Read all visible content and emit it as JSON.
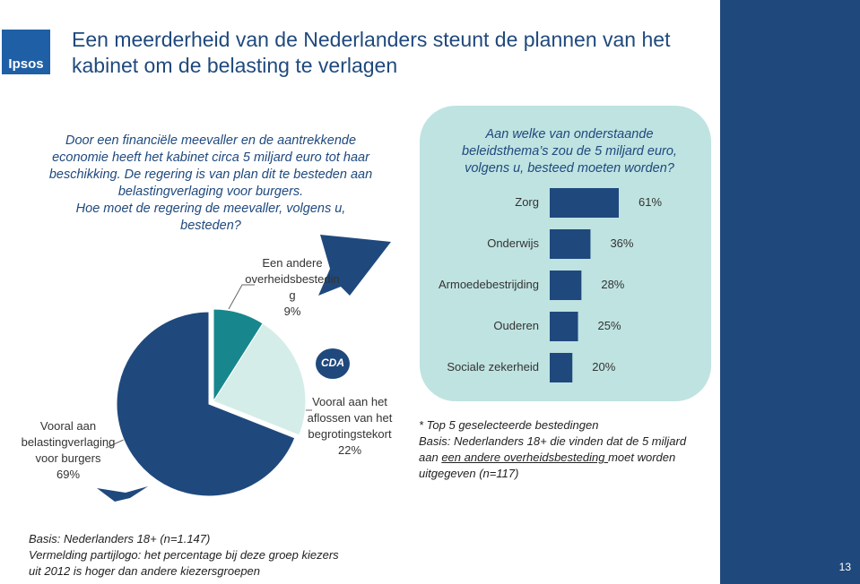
{
  "header": {
    "logo": "Ipsos",
    "title": "Een meerderheid van de Nederlanders steunt de plannen van het kabinet om de belasting te verlagen"
  },
  "intro": [
    "Door een financiële meevaller en de aantrekkende",
    "economie heeft het kabinet circa 5 miljard euro tot haar",
    "beschikking. De regering is van plan dit te besteden aan",
    "belastingverlaging voor burgers.",
    "Hoe moet de regering de meevaller, volgens u,",
    "besteden?"
  ],
  "chart_data": [
    {
      "type": "pie",
      "categories": [
        "Een andere overheidsbesteding",
        "Vooral aan het aflossen van het begrotingstekort",
        "Vooral aan belastingverlaging voor burgers"
      ],
      "values": [
        9,
        22,
        69
      ],
      "value_labels": [
        "9%",
        "22%",
        "69%"
      ],
      "colors": [
        "#17878d",
        "#d5ede9",
        "#1f497d"
      ]
    },
    {
      "type": "bar",
      "title": "Aan welke van onderstaande beleidsthema’s zou de 5 miljard euro, volgens u, besteed moeten worden?",
      "categories": [
        "Zorg",
        "Onderwijs",
        "Armoedebestrijding",
        "Ouderen",
        "Sociale zekerheid"
      ],
      "values": [
        61,
        36,
        28,
        25,
        20
      ],
      "value_labels": [
        "61%",
        "36%",
        "28%",
        "25%",
        "20%"
      ],
      "color": "#1f497d",
      "orientation": "horizontal"
    }
  ],
  "party_logo": "CDA",
  "bar_notes": {
    "line1": "* Top 5 geselecteerde bestedingen",
    "line2": "Basis: Nederlanders 18+ die vinden dat de 5 miljard",
    "line3_before": "aan ",
    "line3_underlined": "een andere overheidsbesteding ",
    "line3_after": "moet worden",
    "line4": "uitgegeven (n=117)"
  },
  "footer": [
    "Basis: Nederlanders 18+ (n=1.147)",
    "Vermelding partijlogo: het percentage bij deze groep kiezers",
    "uit 2012 is hoger dan andere kiezersgroepen"
  ],
  "page_number": "13"
}
